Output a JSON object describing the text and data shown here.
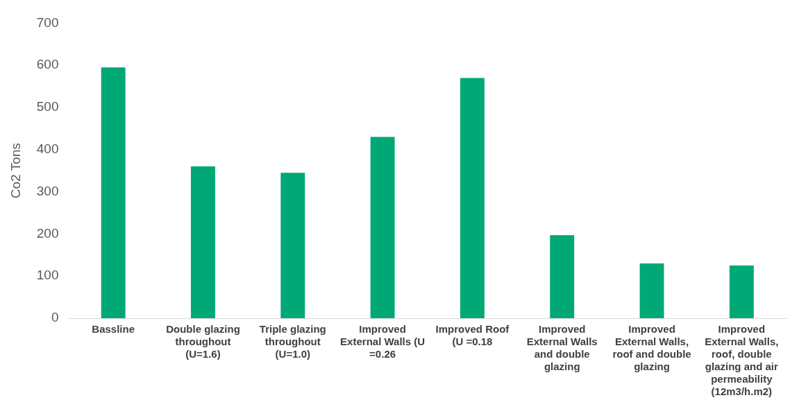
{
  "chart_data": {
    "type": "bar",
    "ylabel": "Co2 Tons",
    "categories": [
      "Bassline",
      "Double glazing throughout (U=1.6)",
      "Triple glazing throughout (U=1.0)",
      "Improved External Walls (U =0.26",
      "Improved Roof (U =0.18",
      "Improved External Walls and double glazing",
      "Improved External Walls, roof and double glazing",
      "Improved External Walls, roof, double glazing and air permeability (12m3/h.m2)"
    ],
    "values": [
      595,
      360,
      345,
      430,
      570,
      197,
      130,
      125
    ],
    "color": "#00a876",
    "ylim": [
      0,
      700
    ],
    "yticks": [
      0,
      100,
      200,
      300,
      400,
      500,
      600,
      700
    ],
    "grid": false,
    "legend": false
  }
}
